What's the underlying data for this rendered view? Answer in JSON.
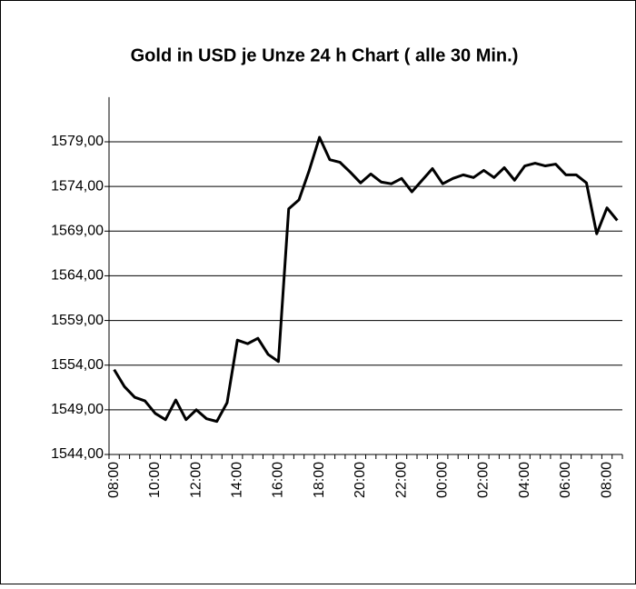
{
  "chart_data": {
    "type": "line",
    "title": "Gold in USD je Unze 24 h Chart ( alle 30 Min.)",
    "categories": [
      "08:00",
      null,
      null,
      null,
      "10:00",
      null,
      null,
      null,
      "12:00",
      null,
      null,
      null,
      "14:00",
      null,
      null,
      null,
      "16:00",
      null,
      null,
      null,
      "18:00",
      null,
      null,
      null,
      "20:00",
      null,
      null,
      null,
      "22:00",
      null,
      null,
      null,
      "00:00",
      null,
      null,
      null,
      "02:00",
      null,
      null,
      null,
      "04:00",
      null,
      null,
      null,
      "06:00",
      null,
      null,
      null,
      "08:00",
      null
    ],
    "series": [
      {
        "name": "Gold",
        "color": "#000000",
        "values": [
          1553.5,
          1551.6,
          1550.4,
          1550.0,
          1548.6,
          1547.9,
          1550.1,
          1547.9,
          1549.0,
          1548.0,
          1547.7,
          1549.8,
          1556.8,
          1556.4,
          1557.0,
          1555.2,
          1554.4,
          1571.5,
          1572.5,
          1575.8,
          1579.5,
          1577.0,
          1576.7,
          1575.6,
          1574.4,
          1575.4,
          1574.5,
          1574.3,
          1574.9,
          1573.4,
          1574.7,
          1576.0,
          1574.3,
          1574.9,
          1575.3,
          1575.0,
          1575.8,
          1575.0,
          1576.1,
          1574.7,
          1576.3,
          1576.6,
          1576.3,
          1576.5,
          1575.3,
          1575.3,
          1574.4,
          1568.7,
          1571.6,
          1570.2
        ]
      }
    ],
    "ylim": [
      1544,
      1584
    ],
    "yticks": [
      {
        "value": 1544,
        "label": "1544,00"
      },
      {
        "value": 1549,
        "label": "1549,00"
      },
      {
        "value": 1554,
        "label": "1554,00"
      },
      {
        "value": 1559,
        "label": "1559,00"
      },
      {
        "value": 1564,
        "label": "1564,00"
      },
      {
        "value": 1569,
        "label": "1569,00"
      },
      {
        "value": 1574,
        "label": "1574,00"
      },
      {
        "value": 1579,
        "label": "1579,00"
      }
    ],
    "grid": true
  }
}
